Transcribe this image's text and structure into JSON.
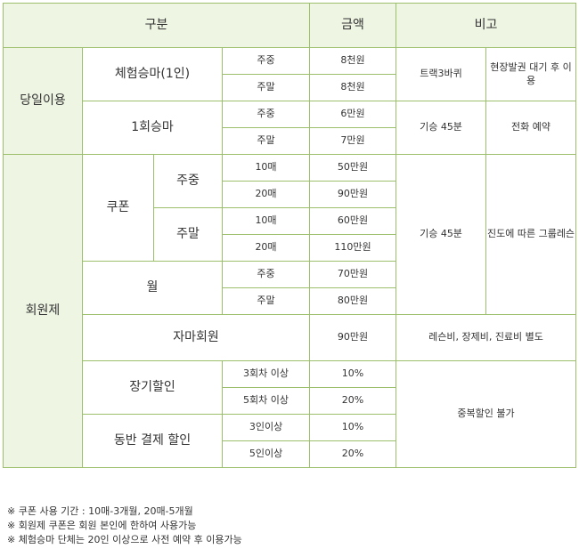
{
  "header": {
    "category": "구분",
    "amount": "금액",
    "remarks": "비고"
  },
  "groups": {
    "daily": "당일이용",
    "membership": "회원제"
  },
  "rows": {
    "trial": {
      "label": "체험승마(1인)",
      "weekday": "주중",
      "weekday_price": "8천원",
      "weekend": "주말",
      "weekend_price": "8천원",
      "note1": "트랙3바퀴",
      "note2": "현장발권 대기 후 이용"
    },
    "one_ride": {
      "label": "1회승마",
      "weekday": "주중",
      "weekday_price": "6만원",
      "weekend": "주말",
      "weekend_price": "7만원",
      "note1": "기승 45분",
      "note2": "전화 예약"
    },
    "coupon": {
      "label": "쿠폰",
      "weekday": "주중",
      "weekend": "주말",
      "weekday_10": "10매",
      "weekday_10_price": "50만원",
      "weekday_20": "20매",
      "weekday_20_price": "90만원",
      "weekend_10": "10매",
      "weekend_10_price": "60만원",
      "weekend_20": "20매",
      "weekend_20_price": "110만원",
      "note1": "기승 45분",
      "note2": "진도에 따른 그룹레슨"
    },
    "monthly": {
      "label": "월",
      "weekday": "주중",
      "weekday_price": "70만원",
      "weekend": "주말",
      "weekend_price": "80만원"
    },
    "horse_member": {
      "label": "자마회원",
      "price": "90만원",
      "note": "레슨비, 장제비, 진료비 별도"
    },
    "long_term": {
      "label": "장기할인",
      "cond1": "3회차 이상",
      "rate1": "10%",
      "cond2": "5회차 이상",
      "rate2": "20%"
    },
    "companion": {
      "label": "동반 결제 할인",
      "cond1": "3인이상",
      "rate1": "10%",
      "cond2": "5인이상",
      "rate2": "20%",
      "note": "중복할인 불가"
    }
  },
  "notes": [
    "※ 쿠폰 사용 기간 : 10매-3개월, 20매-5개월",
    "※ 회원제 쿠폰은 회원 본인에 한하여 사용가능",
    "※ 체험승마 단체는 20인 이상으로 사전 예약 후 이용가능"
  ],
  "colors": {
    "border": "#9bbf6a",
    "header_bg": "#eef5e3"
  }
}
